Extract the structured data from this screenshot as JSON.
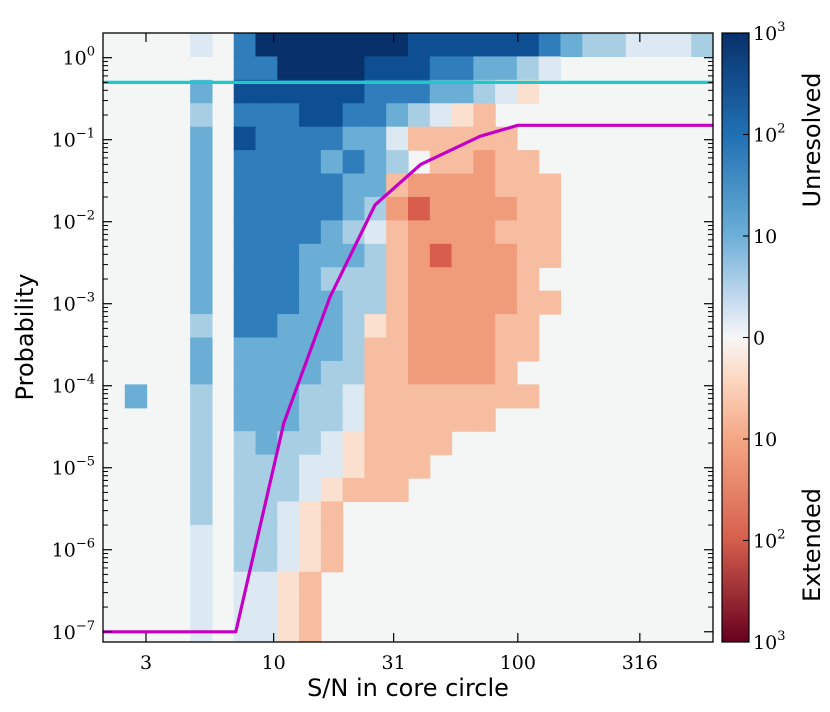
{
  "chart_data": {
    "type": "heatmap",
    "xlabel": "S/N in core circle",
    "ylabel": "Probability",
    "x_scale": "log",
    "y_scale": "log",
    "xlim": [
      2.0,
      630
    ],
    "ylim": [
      7.5e-08,
      2.0
    ],
    "x_ticks": [
      {
        "value": 3,
        "label": "3"
      },
      {
        "value": 10,
        "label": "10"
      },
      {
        "value": 31,
        "label": "31"
      },
      {
        "value": 100,
        "label": "100"
      },
      {
        "value": 316,
        "label": "316"
      }
    ],
    "y_ticks": [
      {
        "value": 1,
        "base": "10",
        "exp": "0"
      },
      {
        "value": 0.1,
        "base": "10",
        "exp": "−1"
      },
      {
        "value": 0.01,
        "base": "10",
        "exp": "−2"
      },
      {
        "value": 0.001,
        "base": "10",
        "exp": "−3"
      },
      {
        "value": 0.0001,
        "base": "10",
        "exp": "−4"
      },
      {
        "value": 1e-05,
        "base": "10",
        "exp": "−5"
      },
      {
        "value": 1e-06,
        "base": "10",
        "exp": "−6"
      },
      {
        "value": 1e-07,
        "base": "10",
        "exp": "−7"
      }
    ],
    "colorbar": {
      "upper_label": "Unresolved",
      "lower_label": "Extended",
      "ticks": [
        {
          "base": "10",
          "exp": "3",
          "plain": ""
        },
        {
          "base": "10",
          "exp": "2",
          "plain": ""
        },
        {
          "base": "",
          "exp": "",
          "plain": "10"
        },
        {
          "base": "",
          "exp": "",
          "plain": "0"
        },
        {
          "base": "",
          "exp": "",
          "plain": "10"
        },
        {
          "base": "10",
          "exp": "2",
          "plain": ""
        },
        {
          "base": "10",
          "exp": "3",
          "plain": ""
        }
      ]
    },
    "heatmap": {
      "grid": [
        26,
        28
      ],
      "value_meaning": "signed counts: positive = Unresolved excess (blue), negative = Extended excess (red)",
      "rows_top_to_bottom": [
        "....a.dhffffffeeeeeedcbbaaab",
        "......ddffffeeeddccba.......",
        "....c.eeeeeedddccbaA........",
        "....b.dddeeddcbaAB..........",
        "....c.eddddccaBBBBB.........",
        "....c.ddddcdcb.BBCBB........",
        "....c.dddddccBCCCCBBB.......",
        "....c.dddddcbCDCCCCBB.......",
        "....c.ddddcbaBCCCCBBB.......",
        "....c.dddcccbBCDCCCBB.......",
        "....c.dddcbbbBCCCCCB........",
        "....c.dddccbbBCCCCCBB.......",
        "....b.ddcccbABCCCCBB........",
        "....c.cccccbBBCCCCBB........",
        "....c.ccccbbBBCCCCB.........",
        ".c..b.cccbbaBBBBBBBB........",
        "....b.cccbbaBBBBBB..........",
        "....b.bcbbaABBBB............",
        "....b.bbbaaABBB.............",
        "....b.bbbaABBB..............",
        "....b.bbaAB.................",
        "....a.bbaAB.................",
        "....a.bbaAB.................",
        "....a.aaAB..................",
        "....a.aaAB..................",
        "....a.aaAB.................."
      ]
    },
    "series": [
      {
        "name": "magenta selection line",
        "color": "#c000c0",
        "x": [
          1.95,
          7.0,
          11.0,
          17.0,
          26.0,
          40.0,
          70.0,
          100.0,
          400.0,
          630.0
        ],
        "y": [
          1e-07,
          1e-07,
          3.5e-05,
          0.0012,
          0.016,
          0.05,
          0.11,
          0.15,
          0.15,
          0.15
        ]
      },
      {
        "name": "cyan threshold line",
        "color": "#00bfbf",
        "x": [
          1.95,
          630.0
        ],
        "y": [
          0.5,
          0.5
        ]
      }
    ],
    "colors": {
      "blue_scale": [
        "#dce9f2",
        "#a8cee4",
        "#6aaed6",
        "#2f7dba",
        "#0e4f94",
        "#08306b"
      ],
      "red_scale": [
        "#fbe0d0",
        "#f6bda1",
        "#f09c7b",
        "#d95d4c",
        "#67001f"
      ],
      "zero_color": "#f4f6f6",
      "cyan_line": "#1fc9c9",
      "magenta_line": "#c400c4"
    }
  }
}
